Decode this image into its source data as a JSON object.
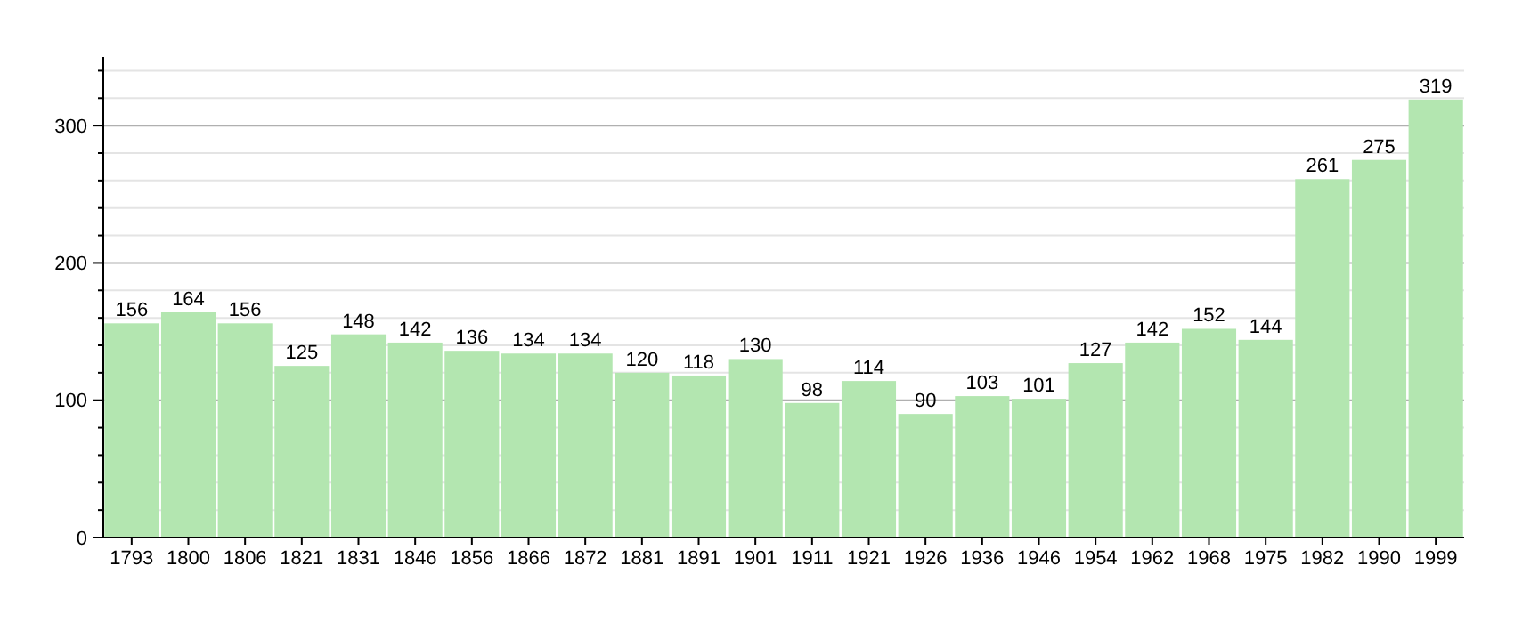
{
  "chart_data": {
    "type": "bar",
    "categories": [
      "1793",
      "1800",
      "1806",
      "1821",
      "1831",
      "1846",
      "1856",
      "1866",
      "1872",
      "1881",
      "1891",
      "1901",
      "1911",
      "1921",
      "1926",
      "1936",
      "1946",
      "1954",
      "1962",
      "1968",
      "1975",
      "1982",
      "1990",
      "1999"
    ],
    "values": [
      156,
      164,
      156,
      125,
      148,
      142,
      136,
      134,
      134,
      120,
      118,
      130,
      98,
      114,
      90,
      103,
      101,
      127,
      142,
      152,
      144,
      261,
      275,
      319
    ],
    "color": "#b3e6b0",
    "ylim": [
      0,
      350
    ],
    "yticks": [
      0,
      {
        "value": 20,
        "label": null
      },
      {
        "value": 40,
        "label": null
      },
      {
        "value": 60,
        "label": null
      },
      {
        "value": 80,
        "label": null
      },
      100,
      {
        "value": 120,
        "label": null
      },
      {
        "value": 140,
        "label": null
      },
      {
        "value": 160,
        "label": null
      },
      {
        "value": 180,
        "label": null
      },
      200,
      {
        "value": 220,
        "label": null
      },
      {
        "value": 240,
        "label": null
      },
      {
        "value": 260,
        "label": null
      },
      {
        "value": 280,
        "label": null
      },
      300,
      {
        "value": 320,
        "label": null
      },
      {
        "value": 340,
        "label": null
      }
    ],
    "grid": true,
    "data_labels": true
  }
}
